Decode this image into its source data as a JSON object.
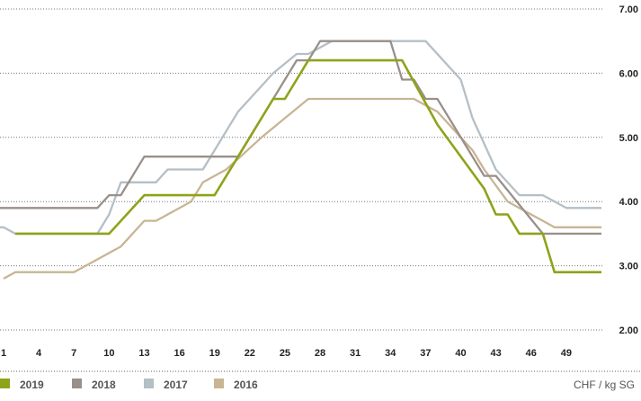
{
  "chart_data": {
    "type": "line",
    "x_ticks": [
      1,
      4,
      7,
      10,
      13,
      16,
      19,
      22,
      25,
      28,
      31,
      34,
      37,
      40,
      43,
      46,
      49
    ],
    "xlim": [
      1,
      52
    ],
    "ylim": [
      2.0,
      7.0
    ],
    "y_ticks": [
      "2.00",
      "3.00",
      "4.00",
      "5.00",
      "6.00",
      "7.00"
    ],
    "grid": true,
    "legend_placement": "bottom-left",
    "unit_label": "CHF / kg SG",
    "series": [
      {
        "name": "2019",
        "color": "#8fa31a",
        "points": [
          [
            2,
            3.5
          ],
          [
            10,
            3.5
          ],
          [
            13,
            4.1
          ],
          [
            19,
            4.1
          ],
          [
            22,
            5.0
          ],
          [
            24,
            5.6
          ],
          [
            25,
            5.6
          ],
          [
            27,
            6.2
          ],
          [
            35,
            6.2
          ],
          [
            38,
            5.2
          ],
          [
            42,
            4.2
          ],
          [
            43,
            3.8
          ],
          [
            44,
            3.8
          ],
          [
            45,
            3.5
          ],
          [
            47,
            3.5
          ],
          [
            48,
            2.9
          ],
          [
            52,
            2.9
          ]
        ]
      },
      {
        "name": "2018",
        "color": "#9a8f8a",
        "points": [
          [
            0,
            3.9
          ],
          [
            9,
            3.9
          ],
          [
            10,
            4.1
          ],
          [
            11,
            4.1
          ],
          [
            13,
            4.7
          ],
          [
            21,
            4.7
          ],
          [
            26,
            6.2
          ],
          [
            27,
            6.2
          ],
          [
            28,
            6.5
          ],
          [
            34,
            6.5
          ],
          [
            35,
            5.9
          ],
          [
            36,
            5.9
          ],
          [
            37,
            5.6
          ],
          [
            38,
            5.6
          ],
          [
            42,
            4.4
          ],
          [
            43,
            4.4
          ],
          [
            47,
            3.5
          ],
          [
            52,
            3.5
          ]
        ]
      },
      {
        "name": "2017",
        "color": "#b4bfc6",
        "points": [
          [
            0,
            3.6
          ],
          [
            1,
            3.6
          ],
          [
            2,
            3.5
          ],
          [
            9,
            3.5
          ],
          [
            10,
            3.8
          ],
          [
            11,
            4.3
          ],
          [
            14,
            4.3
          ],
          [
            15,
            4.5
          ],
          [
            18,
            4.5
          ],
          [
            21,
            5.4
          ],
          [
            22,
            5.6
          ],
          [
            24,
            6.0
          ],
          [
            26,
            6.3
          ],
          [
            27,
            6.3
          ],
          [
            29,
            6.5
          ],
          [
            37,
            6.5
          ],
          [
            40,
            5.9
          ],
          [
            41,
            5.3
          ],
          [
            43,
            4.5
          ],
          [
            45,
            4.1
          ],
          [
            47,
            4.1
          ],
          [
            49,
            3.9
          ],
          [
            52,
            3.9
          ]
        ]
      },
      {
        "name": "2016",
        "color": "#c8b594",
        "points": [
          [
            1,
            2.8
          ],
          [
            2,
            2.9
          ],
          [
            7,
            2.9
          ],
          [
            8,
            3.0
          ],
          [
            11,
            3.3
          ],
          [
            13,
            3.7
          ],
          [
            14,
            3.7
          ],
          [
            17,
            4.0
          ],
          [
            18,
            4.3
          ],
          [
            20,
            4.5
          ],
          [
            23,
            5.0
          ],
          [
            25,
            5.3
          ],
          [
            27,
            5.6
          ],
          [
            36,
            5.6
          ],
          [
            38,
            5.4
          ],
          [
            41,
            4.8
          ],
          [
            42,
            4.5
          ],
          [
            44,
            4.0
          ],
          [
            48,
            3.6
          ],
          [
            52,
            3.6
          ]
        ]
      }
    ]
  }
}
